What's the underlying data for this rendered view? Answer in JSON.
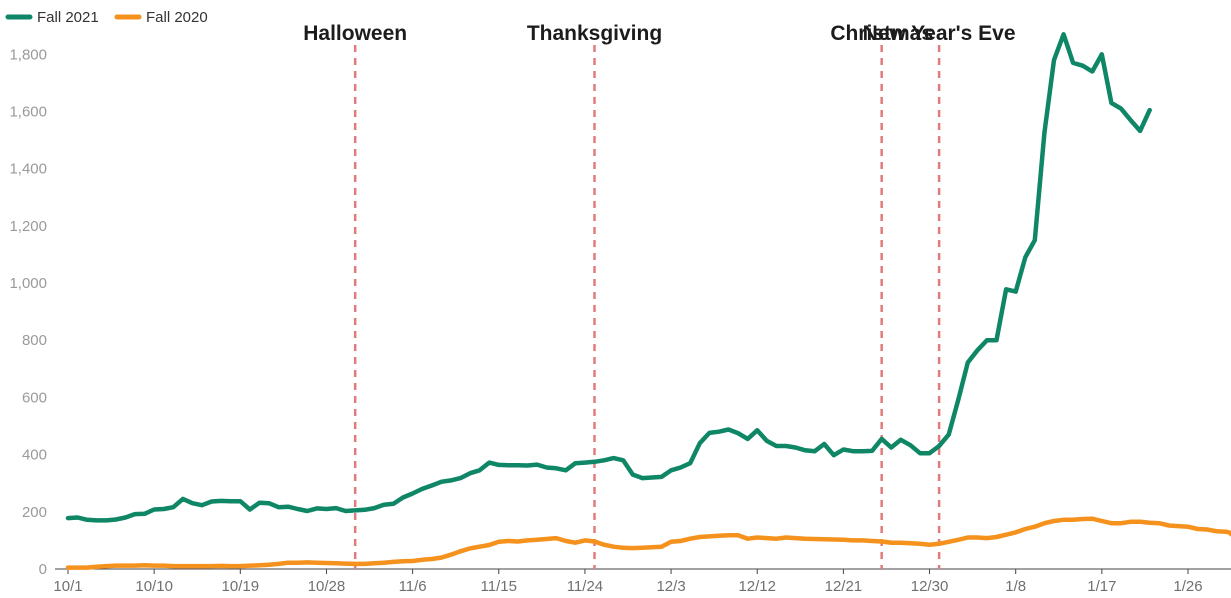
{
  "chart_data": {
    "type": "line",
    "title": "",
    "xlabel": "",
    "ylabel": "",
    "x_ticks": [
      "10/1",
      "10/10",
      "10/19",
      "10/28",
      "11/6",
      "11/15",
      "11/24",
      "12/3",
      "12/12",
      "12/21",
      "12/30",
      "1/8",
      "1/17",
      "1/26"
    ],
    "x_tick_index": [
      0,
      9,
      18,
      27,
      36,
      45,
      54,
      63,
      72,
      81,
      90,
      99,
      108,
      117
    ],
    "x_range": [
      0,
      120
    ],
    "y_ticks": [
      0,
      200,
      400,
      600,
      800,
      1000,
      1200,
      1400,
      1600,
      1800
    ],
    "y_tick_labels": [
      "0",
      "200",
      "400",
      "600",
      "800",
      "1,000",
      "1,200",
      "1,400",
      "1,600",
      "1,800"
    ],
    "ylim": [
      0,
      1850
    ],
    "grid": false,
    "legend_position": "top-left",
    "events": [
      {
        "label": "Halloween",
        "index": 30
      },
      {
        "label": "Thanksgiving",
        "index": 55
      },
      {
        "label": "Christmas",
        "index": 85
      },
      {
        "label": "New Year's Eve",
        "index": 91
      }
    ],
    "series": [
      {
        "name": "Fall 2021",
        "color": "#0f8766",
        "start_index": 0,
        "values": [
          178,
          180,
          172,
          170,
          170,
          173,
          180,
          192,
          193,
          208,
          210,
          216,
          245,
          230,
          223,
          236,
          238,
          237,
          237,
          208,
          232,
          230,
          216,
          218,
          210,
          203,
          212,
          210,
          213,
          203,
          205,
          207,
          213,
          225,
          228,
          250,
          264,
          280,
          292,
          305,
          310,
          318,
          335,
          345,
          372,
          364,
          363,
          363,
          362,
          365,
          355,
          352,
          345,
          370,
          372,
          375,
          380,
          388,
          380,
          330,
          318,
          320,
          322,
          345,
          355,
          370,
          440,
          476,
          480,
          488,
          475,
          455,
          485,
          448,
          430,
          430,
          425,
          415,
          412,
          437,
          398,
          418,
          412,
          412,
          413,
          455,
          425,
          452,
          433,
          405,
          405,
          430,
          470,
          592,
          722,
          765,
          800,
          800,
          978,
          970,
          1090,
          1150,
          1525,
          1780,
          1870,
          1770,
          1760,
          1740,
          1800,
          1630,
          1610,
          1570,
          1532,
          1605
        ]
      },
      {
        "name": "Fall 2020",
        "color": "#f5921e",
        "start_index": 0,
        "values": [
          5,
          5,
          5,
          8,
          10,
          12,
          12,
          12,
          13,
          12,
          12,
          10,
          10,
          10,
          10,
          10,
          11,
          10,
          10,
          12,
          13,
          15,
          18,
          22,
          22,
          23,
          22,
          21,
          20,
          19,
          18,
          18,
          20,
          22,
          25,
          27,
          28,
          32,
          35,
          40,
          50,
          62,
          72,
          78,
          84,
          95,
          98,
          96,
          100,
          102,
          105,
          108,
          98,
          92,
          100,
          96,
          85,
          78,
          74,
          73,
          74,
          76,
          78,
          95,
          98,
          106,
          112,
          114,
          116,
          118,
          118,
          106,
          110,
          108,
          106,
          110,
          108,
          106,
          105,
          104,
          103,
          102,
          100,
          100,
          98,
          96,
          92,
          92,
          90,
          88,
          85,
          88,
          95,
          102,
          110,
          110,
          108,
          112,
          120,
          128,
          140,
          148,
          160,
          168,
          172,
          172,
          175,
          176,
          168,
          160,
          160,
          165,
          165,
          162,
          160,
          152,
          150,
          148,
          140,
          138,
          132,
          130,
          126,
          124,
          122
        ]
      }
    ]
  }
}
